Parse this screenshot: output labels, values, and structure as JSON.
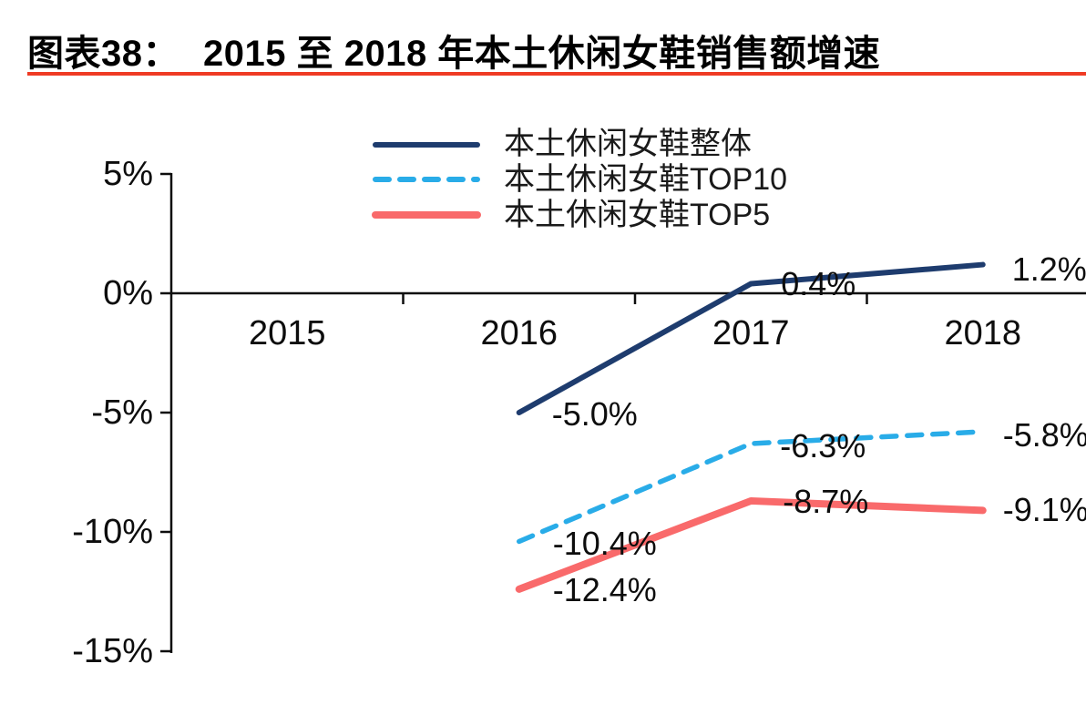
{
  "header": {
    "label": "图表38：",
    "title": "2015 至 2018 年本土休闲女鞋销售额增速",
    "underline_color": "#EF3B24"
  },
  "chart_data": {
    "type": "line",
    "title": "2015 至 2018 年本土休闲女鞋销售额增速",
    "categories": [
      "2015",
      "2016",
      "2017",
      "2018"
    ],
    "series": [
      {
        "name": "本土休闲女鞋整体",
        "color": "#1E3C6E",
        "line_style": "solid",
        "line_width": 6,
        "values": [
          null,
          -5.0,
          0.4,
          1.2
        ],
        "labels": [
          null,
          "-5.0%",
          "0.4%",
          "1.2%"
        ]
      },
      {
        "name": "本土休闲女鞋TOP10",
        "color": "#29ACE8",
        "line_style": "dashed",
        "line_width": 5.5,
        "values": [
          null,
          -10.4,
          -6.3,
          -5.8
        ],
        "labels": [
          null,
          "-10.4%",
          "-6.3%",
          "-5.8%"
        ]
      },
      {
        "name": "本土休闲女鞋TOP5",
        "color": "#F96A6B",
        "line_style": "solid",
        "line_width": 8,
        "values": [
          null,
          -12.4,
          -8.7,
          -9.1
        ],
        "labels": [
          null,
          "-12.4%",
          "-8.7%",
          "-9.1%"
        ]
      }
    ],
    "y_axis": {
      "tick_labels": [
        "5%",
        "0%",
        "-5%",
        "-10%",
        "-15%"
      ],
      "tick_values": [
        5,
        0,
        -5,
        -10,
        -15
      ],
      "min": -15,
      "max": 5,
      "unit": "%"
    },
    "x_axis": {
      "tick_labels": [
        "2015",
        "2016",
        "2017",
        "2018"
      ]
    },
    "grid": false,
    "legend_position": "top-center",
    "axis_color": "#0d0d0d",
    "layout": {
      "label_offsets": [
        [
          [
            36,
            2
          ],
          [
            33,
            0
          ],
          [
            32,
            5
          ]
        ],
        [
          [
            37,
            3
          ],
          [
            32,
            3
          ],
          [
            22,
            4
          ]
        ],
        [
          [
            37,
            1
          ],
          [
            35,
            1
          ],
          [
            22,
            0
          ]
        ]
      ]
    }
  }
}
